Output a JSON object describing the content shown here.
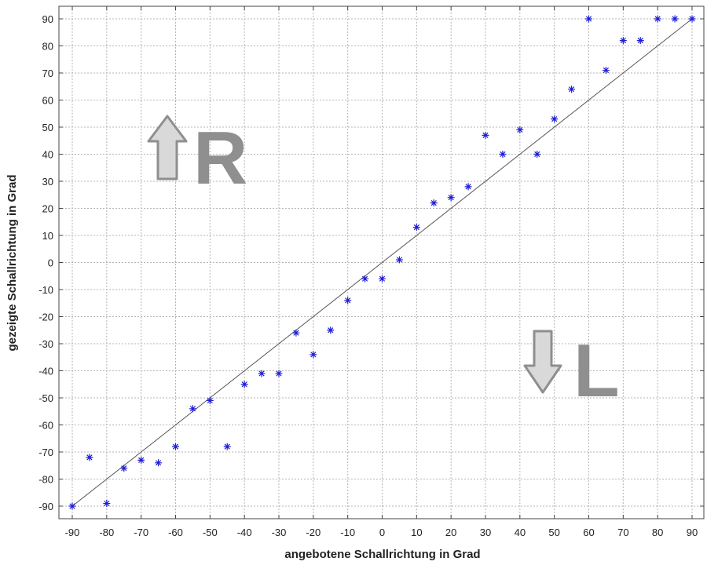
{
  "chart_data": {
    "type": "scatter",
    "xlabel": "angebotene Schallrichtung in Grad",
    "ylabel": "gezeigte Schallrichtung in Grad",
    "xlim": [
      -90,
      90
    ],
    "ylim": [
      -90,
      90
    ],
    "x_ticks": [
      "-90",
      "-80",
      "-70",
      "-60",
      "-50",
      "-40",
      "-30",
      "-20",
      "-10",
      "0",
      "10",
      "20",
      "30",
      "40",
      "50",
      "60",
      "70",
      "80",
      "90"
    ],
    "y_ticks": [
      "-90",
      "-80",
      "-70",
      "-60",
      "-50",
      "-40",
      "-30",
      "-20",
      "-10",
      "0",
      "10",
      "20",
      "30",
      "40",
      "50",
      "60",
      "70",
      "80",
      "90"
    ],
    "grid": true,
    "marker": "asterisk",
    "marker_color": "#1f1fd6",
    "reference_line": {
      "from": [
        -90,
        -90
      ],
      "to": [
        90,
        90
      ],
      "color": "#555555"
    },
    "points": [
      [
        -90,
        -90
      ],
      [
        -85,
        -72
      ],
      [
        -80,
        -89
      ],
      [
        -75,
        -76
      ],
      [
        -70,
        -73
      ],
      [
        -65,
        -74
      ],
      [
        -60,
        -68
      ],
      [
        -55,
        -54
      ],
      [
        -50,
        -51
      ],
      [
        -45,
        -68
      ],
      [
        -40,
        -45
      ],
      [
        -35,
        -41
      ],
      [
        -30,
        -41
      ],
      [
        -25,
        -26
      ],
      [
        -20,
        -34
      ],
      [
        -15,
        -25
      ],
      [
        -10,
        -14
      ],
      [
        -5,
        -6
      ],
      [
        0,
        -6
      ],
      [
        5,
        1
      ],
      [
        10,
        13
      ],
      [
        15,
        22
      ],
      [
        20,
        24
      ],
      [
        25,
        28
      ],
      [
        30,
        47
      ],
      [
        35,
        40
      ],
      [
        40,
        49
      ],
      [
        45,
        40
      ],
      [
        50,
        53
      ],
      [
        55,
        64
      ],
      [
        60,
        90
      ],
      [
        65,
        71
      ],
      [
        70,
        82
      ],
      [
        75,
        82
      ],
      [
        80,
        90
      ],
      [
        85,
        90
      ],
      [
        90,
        90
      ]
    ],
    "annotations": [
      {
        "text": "R",
        "arrow": "up",
        "color": "#8f8f8f"
      },
      {
        "text": "L",
        "arrow": "down",
        "color": "#8f8f8f"
      }
    ]
  }
}
